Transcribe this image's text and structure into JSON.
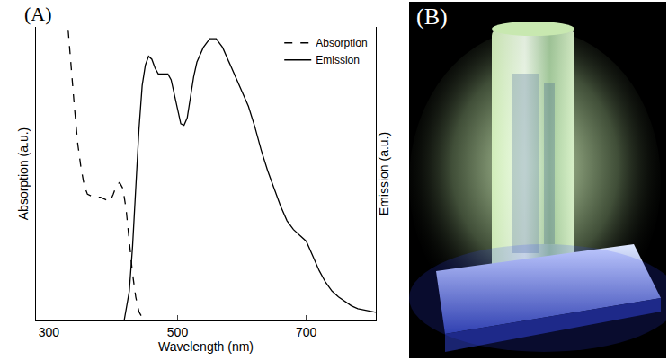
{
  "chart_data": {
    "type": "line",
    "panel_label": "(A)",
    "xlabel": "Wavelength (nm)",
    "ylabel": "Absorption (a.u.)",
    "y2label": "Emission (a.u.)",
    "xlim": [
      280,
      808
    ],
    "xticks": [
      300,
      500,
      700
    ],
    "ylim": [
      0,
      1
    ],
    "y2lim": [
      0,
      1
    ],
    "tick_labels": "x",
    "legend": "upper right",
    "series": [
      {
        "name": "Absorption",
        "color": "#000000",
        "line_style": "dash",
        "x": [
          330,
          335,
          340,
          345,
          350,
          355,
          360,
          370,
          380,
          390,
          395,
          400,
          405,
          410,
          415,
          420,
          425,
          430,
          435,
          440,
          445,
          450
        ],
        "values": [
          0.99,
          0.85,
          0.72,
          0.6,
          0.52,
          0.46,
          0.43,
          0.42,
          0.42,
          0.41,
          0.405,
          0.43,
          0.46,
          0.47,
          0.45,
          0.38,
          0.27,
          0.16,
          0.08,
          0.03,
          0.01,
          0
        ]
      },
      {
        "name": "Emission",
        "color": "#000000",
        "line_style": "solid",
        "axis": "y2",
        "x": [
          417,
          425,
          430,
          435,
          440,
          445,
          450,
          455,
          460,
          465,
          470,
          475,
          480,
          485,
          490,
          495,
          500,
          505,
          510,
          515,
          520,
          525,
          530,
          540,
          550,
          560,
          570,
          580,
          590,
          600,
          610,
          620,
          630,
          640,
          650,
          660,
          670,
          680,
          690,
          700,
          710,
          720,
          730,
          740,
          750,
          760,
          770,
          780,
          800,
          808
        ],
        "values": [
          0,
          0.1,
          0.25,
          0.45,
          0.65,
          0.8,
          0.87,
          0.9,
          0.89,
          0.86,
          0.84,
          0.84,
          0.84,
          0.84,
          0.82,
          0.77,
          0.71,
          0.67,
          0.665,
          0.69,
          0.76,
          0.83,
          0.88,
          0.93,
          0.96,
          0.96,
          0.93,
          0.88,
          0.83,
          0.78,
          0.73,
          0.66,
          0.58,
          0.51,
          0.45,
          0.39,
          0.34,
          0.31,
          0.29,
          0.27,
          0.22,
          0.17,
          0.13,
          0.1,
          0.08,
          0.065,
          0.05,
          0.04,
          0.03,
          0.028
        ]
      }
    ]
  },
  "photo_panel": {
    "label": "(B)"
  }
}
